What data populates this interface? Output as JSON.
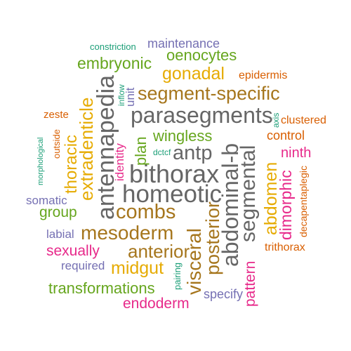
{
  "words": {
    "constriction": "constriction",
    "maintenance": "maintenance",
    "oenocytes": "oenocytes",
    "embryonic": "embryonic",
    "gonadal": "gonadal",
    "epidermis": "epidermis",
    "segment_specific": "segment-specific",
    "antennapedia": "antennapedia",
    "inflow": "inflow",
    "unit": "unit",
    "extradenticle": "extradenticle",
    "thoracic": "thoracic",
    "parasegments": "parasegments",
    "zeste": "zeste",
    "outside": "outside",
    "morphological": "morphological",
    "axis": "axis",
    "clustered": "clustered",
    "control": "control",
    "wingless": "wingless",
    "plan": "plan",
    "identity": "identity",
    "dctcf": "dctcf",
    "antp": "antp",
    "abdominal_b": "abdominal-b",
    "segmental": "segmental",
    "ninth": "ninth",
    "abdomen": "abdomen",
    "dimorphic": "dimorphic",
    "decapentaplegic": "decapentaplegic",
    "bithorax": "bithorax",
    "homeotic": "homeotic",
    "somatic": "somatic",
    "group": "group",
    "combs": "combs",
    "labial": "labial",
    "mesoderm": "mesoderm",
    "visceral": "visceral",
    "posterior": "posterior",
    "sexually": "sexually",
    "anterior": "anterior",
    "trithorax": "trithorax",
    "required": "required",
    "midgut": "midgut",
    "pairing": "pairing",
    "transformations": "transformations",
    "specify": "specify",
    "pattern": "pattern",
    "endoderm": "endoderm"
  },
  "colors": {
    "gray": "#666666",
    "brown": "#a6761d",
    "gold": "#e6ab02",
    "green": "#66a61e",
    "teal": "#1b9e77",
    "orange": "#d95f02",
    "purple": "#7570b3",
    "magenta": "#e7298a"
  }
}
